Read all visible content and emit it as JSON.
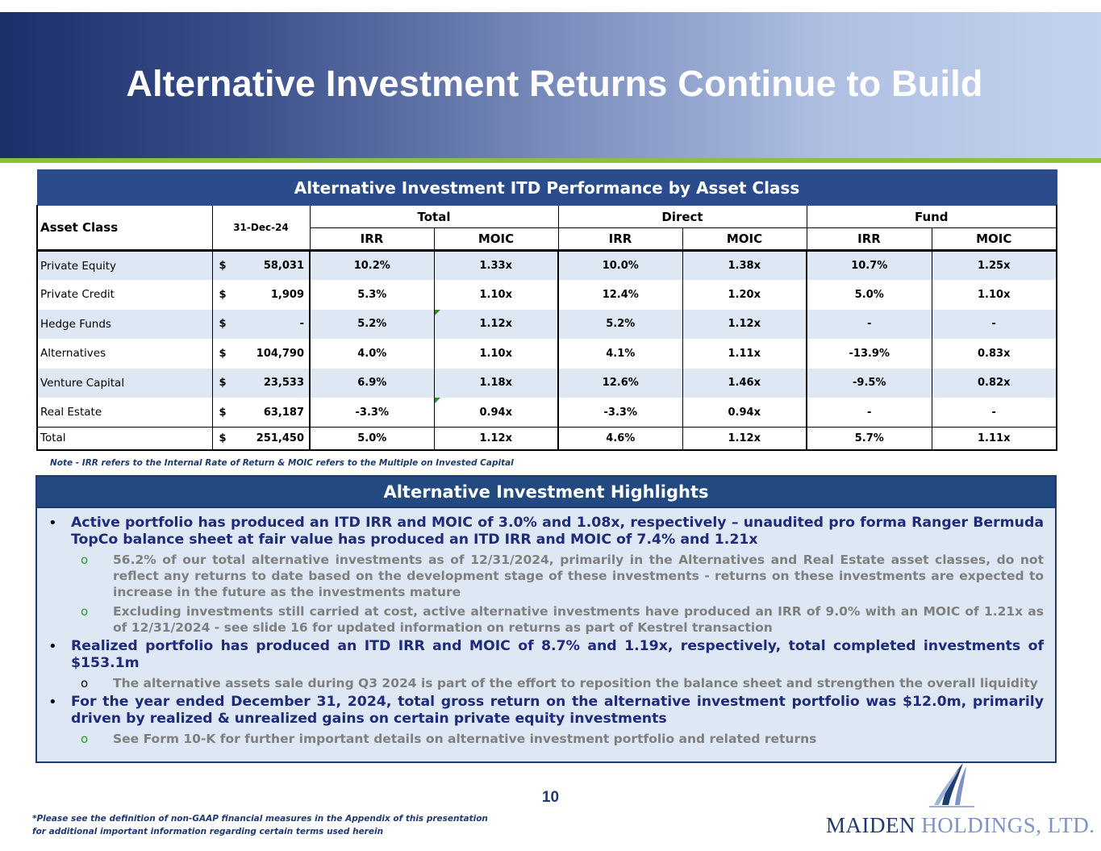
{
  "header": {
    "title": "Alternative Investment Returns Continue to Build"
  },
  "performance_table": {
    "caption": "Alternative Investment ITD Performance by Asset Class",
    "col_asset_class": "Asset Class",
    "col_date": "31-Dec-24",
    "group_total": "Total",
    "group_direct": "Direct",
    "group_fund": "Fund",
    "irr": "IRR",
    "moic": "MOIC",
    "rows": [
      {
        "asset": "Private Equity",
        "cur": "$",
        "amount": "58,031",
        "total_irr": "10.2%",
        "total_moic": "1.33x",
        "direct_irr": "10.0%",
        "direct_moic": "1.38x",
        "fund_irr": "10.7%",
        "fund_moic": "1.25x"
      },
      {
        "asset": "Private Credit",
        "cur": "$",
        "amount": "1,909",
        "total_irr": "5.3%",
        "total_moic": "1.10x",
        "direct_irr": "12.4%",
        "direct_moic": "1.20x",
        "fund_irr": "5.0%",
        "fund_moic": "1.10x"
      },
      {
        "asset": "Hedge Funds",
        "cur": "$",
        "amount": "-",
        "total_irr": "5.2%",
        "total_moic": "1.12x",
        "direct_irr": "5.2%",
        "direct_moic": "1.12x",
        "fund_irr": "-",
        "fund_moic": "-"
      },
      {
        "asset": "Alternatives",
        "cur": "$",
        "amount": "104,790",
        "total_irr": "4.0%",
        "total_moic": "1.10x",
        "direct_irr": "4.1%",
        "direct_moic": "1.11x",
        "fund_irr": "-13.9%",
        "fund_moic": "0.83x"
      },
      {
        "asset": "Venture Capital",
        "cur": "$",
        "amount": "23,533",
        "total_irr": "6.9%",
        "total_moic": "1.18x",
        "direct_irr": "12.6%",
        "direct_moic": "1.46x",
        "fund_irr": "-9.5%",
        "fund_moic": "0.82x"
      },
      {
        "asset": "Real Estate",
        "cur": "$",
        "amount": "63,187",
        "total_irr": "-3.3%",
        "total_moic": "0.94x",
        "direct_irr": "-3.3%",
        "direct_moic": "0.94x",
        "fund_irr": "-",
        "fund_moic": "-"
      }
    ],
    "total_row": {
      "asset": "Total",
      "cur": "$",
      "amount": "251,450",
      "total_irr": "5.0%",
      "total_moic": "1.12x",
      "direct_irr": "4.6%",
      "direct_moic": "1.12x",
      "fund_irr": "5.7%",
      "fund_moic": "1.11x"
    },
    "note": "Note - IRR refers to the Internal Rate of Return & MOIC refers to the Multiple on Invested Capital"
  },
  "highlights": {
    "title": "Alternative Investment Highlights",
    "bullet1": "Active portfolio has produced an ITD IRR and MOIC of 3.0% and 1.08x, respectively – unaudited pro forma Ranger Bermuda TopCo balance sheet at fair value has produced an ITD IRR and MOIC of 7.4% and 1.21x",
    "bullet1_sub1": "56.2% of our total alternative investments as of 12/31/2024, primarily in the Alternatives and Real Estate asset classes, do not reflect any returns to date based on the development stage of these investments - returns on these investments are expected to increase in the future as the investments mature",
    "bullet1_sub2": "Excluding investments still carried at cost, active alternative investments have produced an IRR of 9.0% with an MOIC of 1.21x as of 12/31/2024 - see slide 16 for updated information on returns as part of Kestrel transaction",
    "bullet2": "Realized portfolio has produced an ITD IRR and MOIC of 8.7% and 1.19x, respectively, total completed investments of $153.1m",
    "bullet2_sub1": "The alternative assets sale during Q3 2024 is part of the effort to reposition the balance sheet and strengthen the overall liquidity",
    "bullet3": "For the year ended December 31, 2024, total gross return on the alternative investment portfolio was $12.0m, primarily driven by realized & unrealized gains on certain private equity investments",
    "bullet3_sub1": "See Form 10-K for further important details on alternative investment portfolio and related returns",
    "bullet_char": "•",
    "sub_char": "o"
  },
  "footer": {
    "page_number": "10",
    "footnote": "*Please see the definition of non-GAAP financial measures in the Appendix of this presentation for additional important information regarding certain terms used herein",
    "logo_part1": "MAIDEN",
    "logo_part2": " HOLDINGS, LTD.",
    "logo_icon": "sail-icon"
  },
  "colors": {
    "header_dark": "#1b2f6a",
    "header_light": "#c3d3ef",
    "accent_green": "#8cbf3f",
    "table_caption": "#2b4c8c",
    "row_alt": "#dde8f4",
    "highlight_text": "#1e2a7a",
    "sub_text": "#7f7f7f"
  }
}
